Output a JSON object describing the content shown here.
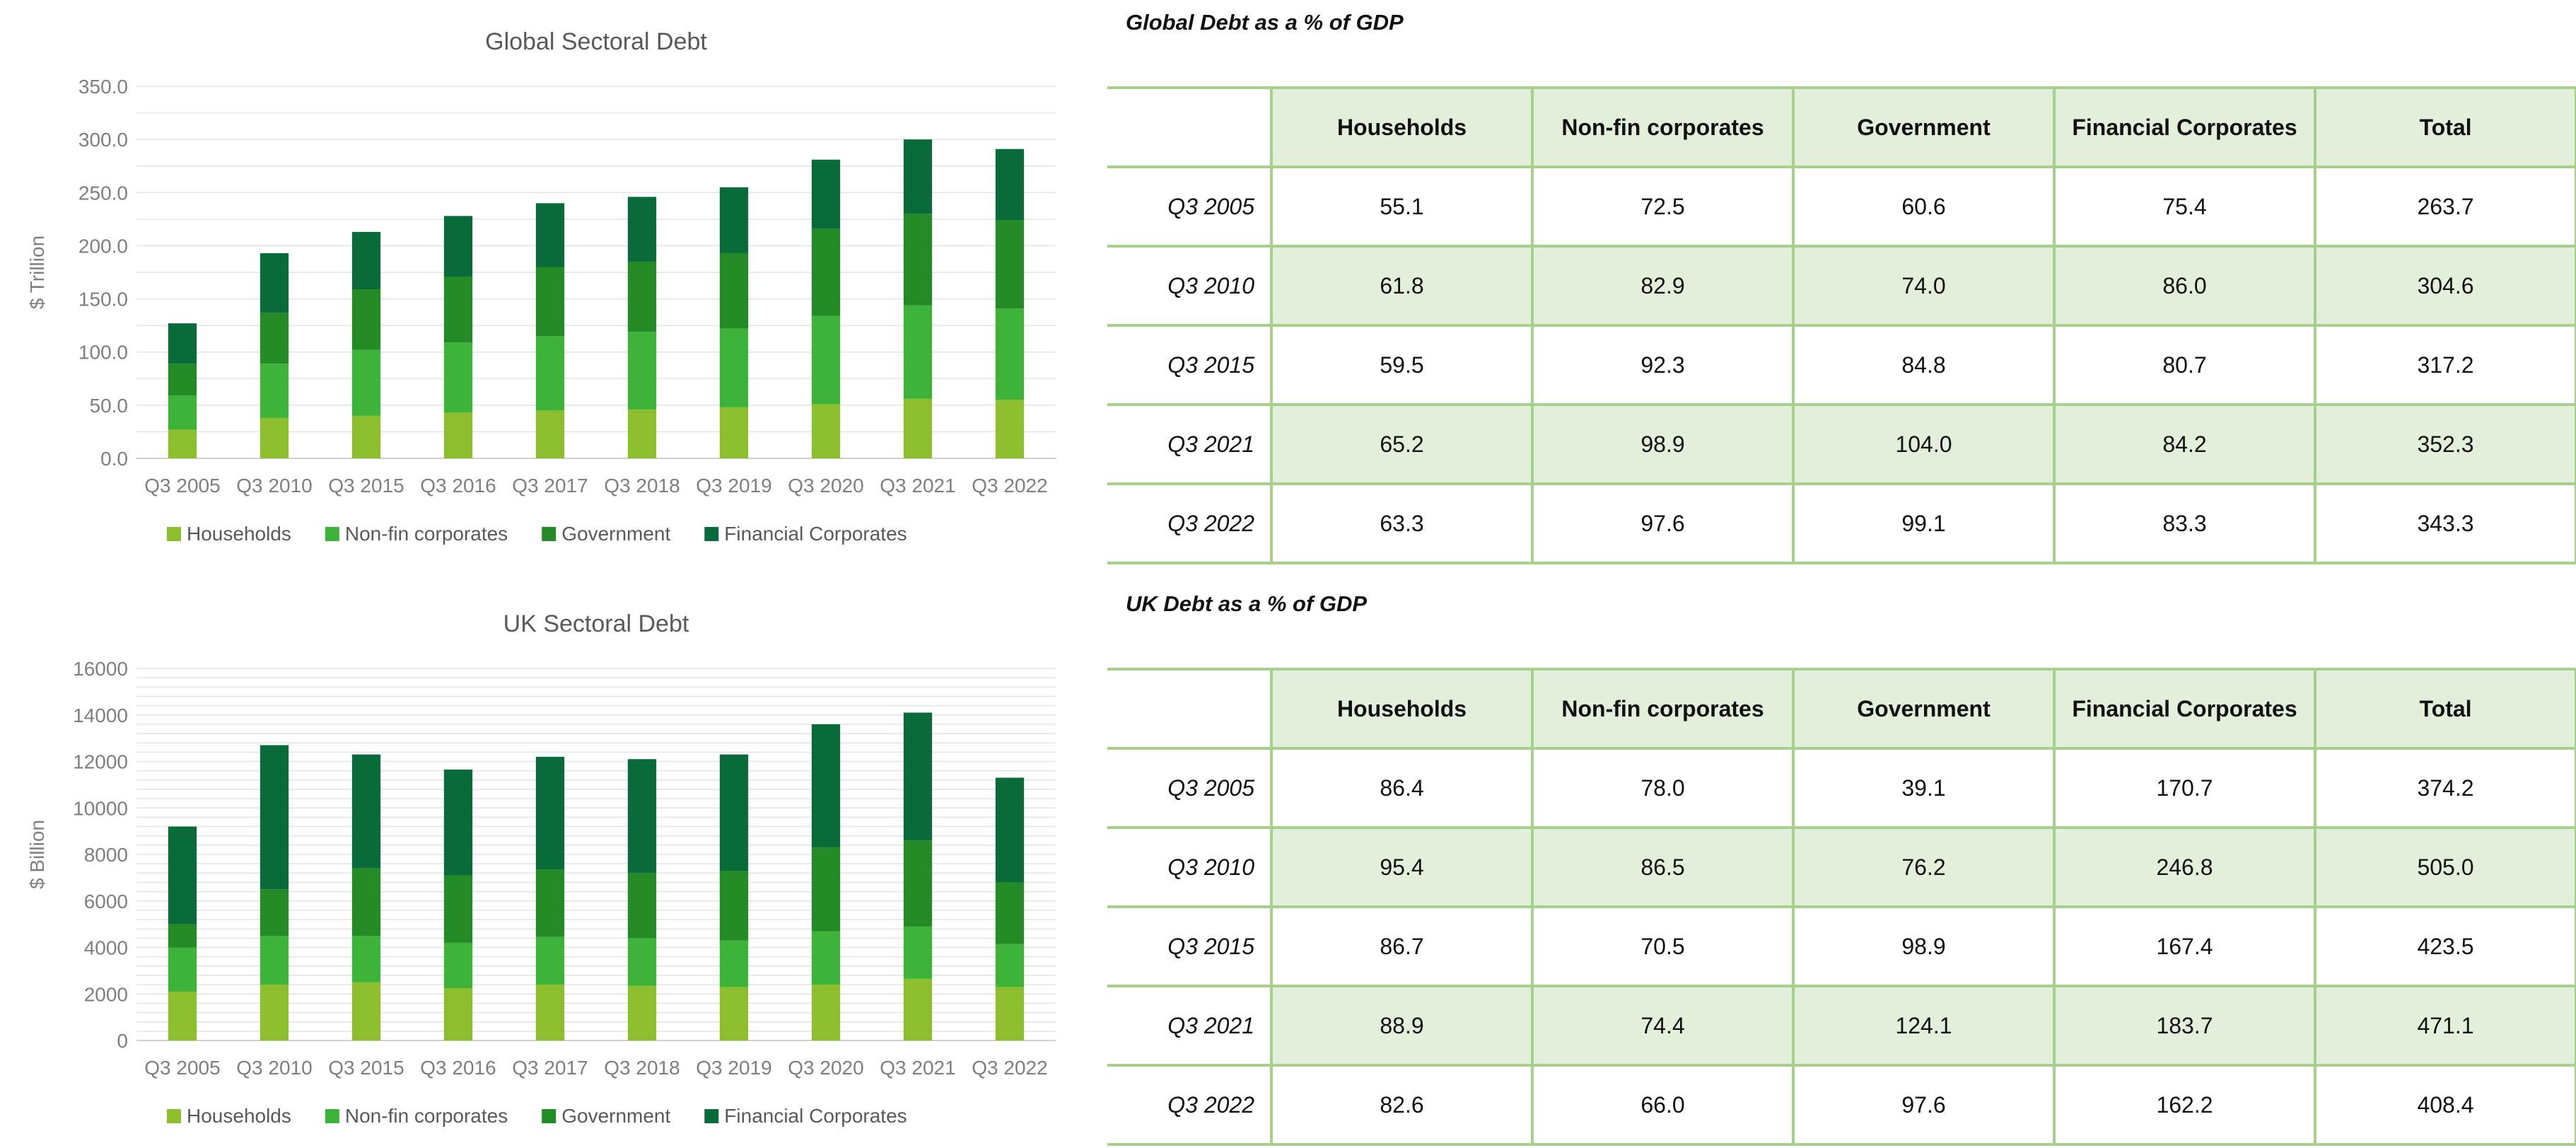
{
  "colors": {
    "households": "#8dbe2d",
    "non_fin_corporates": "#3db33a",
    "government": "#248a25",
    "financial_corporates": "#0a6b3a",
    "table_border": "#a8d08d",
    "table_fill": "#e2efda"
  },
  "chart_data": [
    {
      "type": "bar",
      "stacked": true,
      "title": "Global Sectoral Debt",
      "xlabel": "",
      "ylabel": "$ Trillion",
      "ylim": [
        0,
        350
      ],
      "yticks": [
        "0.0",
        "50.0",
        "100.0",
        "150.0",
        "200.0",
        "250.0",
        "300.0",
        "350.0"
      ],
      "grid": true,
      "legend_position": "bottom",
      "categories": [
        "Q3 2005",
        "Q3 2010",
        "Q3 2015",
        "Q3 2016",
        "Q3 2017",
        "Q3 2018",
        "Q3 2019",
        "Q3 2020",
        "Q3 2021",
        "Q3 2022"
      ],
      "series": [
        {
          "name": "Households",
          "values": [
            27,
            38,
            40,
            43,
            45,
            46,
            48,
            51,
            56,
            55
          ]
        },
        {
          "name": "Non-fin corporates",
          "values": [
            32,
            51,
            62,
            66,
            70,
            73,
            74,
            83,
            88,
            86
          ]
        },
        {
          "name": "Government",
          "values": [
            30,
            48,
            57,
            62,
            65,
            66,
            71,
            82,
            86,
            83
          ]
        },
        {
          "name": "Financial Corporates",
          "values": [
            38,
            56,
            54,
            57,
            60,
            61,
            62,
            65,
            70,
            67
          ]
        }
      ]
    },
    {
      "type": "bar",
      "stacked": true,
      "title": "UK Sectoral Debt",
      "xlabel": "",
      "ylabel": "$ Billion",
      "ylim": [
        0,
        16000
      ],
      "yticks": [
        "0",
        "2000",
        "4000",
        "6000",
        "8000",
        "10000",
        "12000",
        "14000",
        "16000"
      ],
      "grid": true,
      "legend_position": "bottom",
      "categories": [
        "Q3 2005",
        "Q3 2010",
        "Q3 2015",
        "Q3 2016",
        "Q3 2017",
        "Q3 2018",
        "Q3 2019",
        "Q3 2020",
        "Q3 2021",
        "Q3 2022"
      ],
      "series": [
        {
          "name": "Households",
          "values": [
            2100,
            2400,
            2500,
            2250,
            2400,
            2350,
            2300,
            2400,
            2650,
            2300
          ]
        },
        {
          "name": "Non-fin corporates",
          "values": [
            1900,
            2100,
            2000,
            1950,
            2050,
            2050,
            2000,
            2300,
            2250,
            1850
          ]
        },
        {
          "name": "Government",
          "values": [
            1000,
            2000,
            2900,
            2900,
            2900,
            2800,
            3000,
            3600,
            3700,
            2650
          ]
        },
        {
          "name": "Financial Corporates",
          "values": [
            4200,
            6200,
            4900,
            4550,
            4850,
            4900,
            5000,
            5300,
            5500,
            4500
          ]
        }
      ]
    }
  ],
  "global_table": {
    "title": "Global Debt as a % of GDP",
    "headers": [
      "Households",
      "Non-fin corporates",
      "Government",
      "Financial Corporates",
      "Total"
    ],
    "rows": [
      {
        "label": "Q3 2005",
        "values": [
          "55.1",
          "72.5",
          "60.6",
          "75.4",
          "263.7"
        ]
      },
      {
        "label": "Q3 2010",
        "values": [
          "61.8",
          "82.9",
          "74.0",
          "86.0",
          "304.6"
        ]
      },
      {
        "label": "Q3 2015",
        "values": [
          "59.5",
          "92.3",
          "84.8",
          "80.7",
          "317.2"
        ]
      },
      {
        "label": "Q3 2021",
        "values": [
          "65.2",
          "98.9",
          "104.0",
          "84.2",
          "352.3"
        ]
      },
      {
        "label": "Q3 2022",
        "values": [
          "63.3",
          "97.6",
          "99.1",
          "83.3",
          "343.3"
        ]
      }
    ]
  },
  "uk_table": {
    "title": "UK Debt as a % of GDP",
    "headers": [
      "Households",
      "Non-fin corporates",
      "Government",
      "Financial Corporates",
      "Total"
    ],
    "rows": [
      {
        "label": "Q3 2005",
        "values": [
          "86.4",
          "78.0",
          "39.1",
          "170.7",
          "374.2"
        ]
      },
      {
        "label": "Q3 2010",
        "values": [
          "95.4",
          "86.5",
          "76.2",
          "246.8",
          "505.0"
        ]
      },
      {
        "label": "Q3 2015",
        "values": [
          "86.7",
          "70.5",
          "98.9",
          "167.4",
          "423.5"
        ]
      },
      {
        "label": "Q3 2021",
        "values": [
          "88.9",
          "74.4",
          "124.1",
          "183.7",
          "471.1"
        ]
      },
      {
        "label": "Q3 2022",
        "values": [
          "82.6",
          "66.0",
          "97.6",
          "162.2",
          "408.4"
        ]
      }
    ]
  }
}
